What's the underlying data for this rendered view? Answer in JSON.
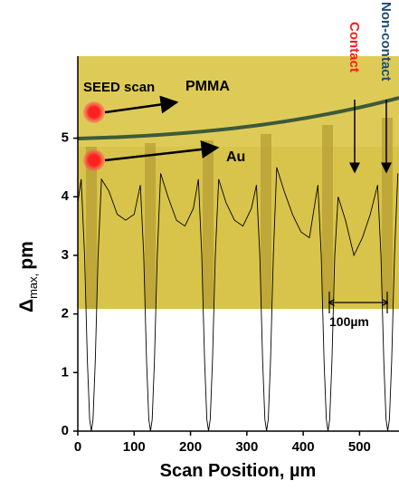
{
  "chart_data": {
    "type": "line",
    "xlabel": "Scan Position, µm",
    "ylabel": {
      "symbol": "Δ",
      "subscript": "max,",
      "unit": "pm"
    },
    "xlim": [
      0,
      570
    ],
    "xticks": [
      0,
      100,
      200,
      300,
      400,
      500
    ],
    "ylim": [
      0,
      6.4
    ],
    "yticks": [
      0,
      1,
      2,
      3,
      4,
      5
    ],
    "x": [
      0,
      6,
      12,
      17,
      21,
      24,
      27,
      31,
      36,
      42,
      55,
      70,
      85,
      100,
      111,
      117,
      122,
      126,
      129,
      132,
      136,
      141,
      147,
      160,
      175,
      190,
      205,
      214,
      220,
      225,
      229,
      232,
      235,
      239,
      244,
      250,
      263,
      278,
      293,
      308,
      317,
      323,
      328,
      332,
      335,
      338,
      342,
      347,
      353,
      366,
      381,
      396,
      411,
      426,
      432,
      437,
      441,
      444,
      447,
      451,
      456,
      462,
      475,
      490,
      505,
      519,
      532,
      538,
      543,
      547,
      550,
      553,
      557,
      562,
      568
    ],
    "series": [
      {
        "color": "#000000",
        "values": [
          3.9,
          4.3,
          3.0,
          1.2,
          0.2,
          0,
          0.2,
          1.2,
          3.0,
          4.3,
          4.1,
          3.7,
          3.6,
          3.7,
          4.2,
          3.0,
          1.2,
          0.2,
          0,
          0.2,
          1.2,
          3.0,
          4.4,
          4.0,
          3.6,
          3.5,
          3.8,
          4.3,
          3.0,
          1.2,
          0.2,
          0,
          0.2,
          1.2,
          3.0,
          4.3,
          3.9,
          3.6,
          3.5,
          3.8,
          4.2,
          3.0,
          1.2,
          0.2,
          0,
          0.2,
          1.2,
          3.0,
          4.5,
          4.1,
          3.7,
          3.4,
          3.3,
          4.2,
          3.0,
          1.2,
          0.2,
          0,
          0.2,
          1.2,
          3.0,
          4.0,
          3.6,
          3.0,
          3.3,
          3.7,
          4.2,
          3.0,
          1.2,
          0.2,
          0,
          0.2,
          1.2,
          3.0,
          4.4
        ]
      }
    ],
    "annotations": {
      "seed": "SEED scan",
      "pmma": "PMMA",
      "au": "Au",
      "contact": "Contact",
      "noncontact": "Non-contact",
      "scale": "100µm"
    }
  }
}
